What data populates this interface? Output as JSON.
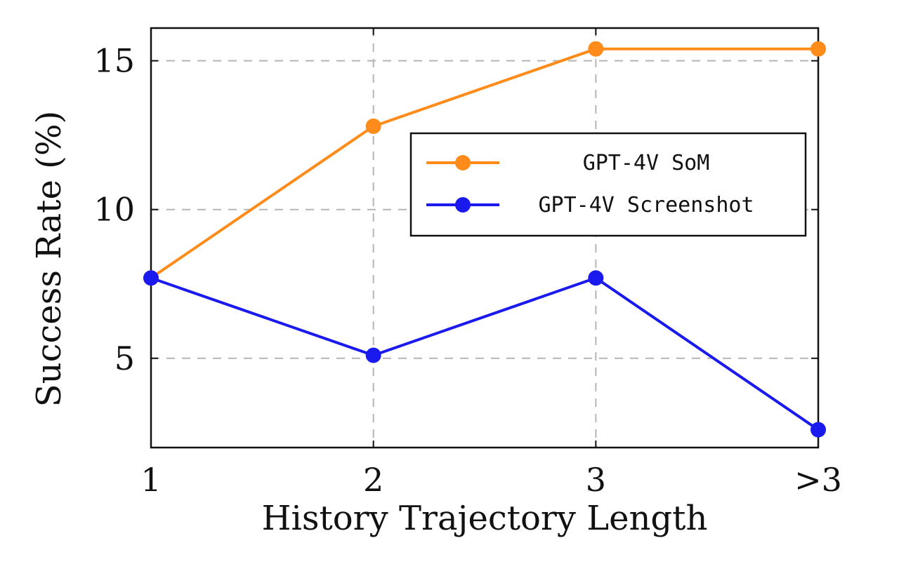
{
  "chart_data": {
    "type": "line",
    "categories": [
      "1",
      "2",
      "3",
      ">3"
    ],
    "xlabel": "History Trajectory Length",
    "ylabel": "Success Rate (%)",
    "ylim": [
      2,
      16.1
    ],
    "yticks": [
      5,
      10,
      15
    ],
    "grid": true,
    "legend_position": "upper-right",
    "series": [
      {
        "name": "GPT-4V SoM",
        "color": "#ff8c1a",
        "values": [
          7.7,
          12.8,
          15.4,
          15.4
        ]
      },
      {
        "name": "GPT-4V Screenshot",
        "color": "#1a1aee",
        "values": [
          7.7,
          5.1,
          7.7,
          2.6
        ]
      }
    ]
  }
}
